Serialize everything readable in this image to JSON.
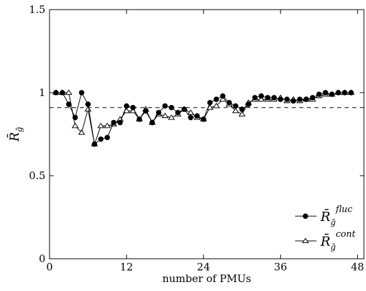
{
  "chart_data": {
    "type": "line",
    "xlabel": "number of PMUs",
    "ylabel": "R̄",
    "ylabel_sub": "ḡ",
    "xlim": [
      0,
      49
    ],
    "ylim": [
      0,
      1.5
    ],
    "xticks": [
      0,
      12,
      24,
      36,
      48
    ],
    "xtick_labels": [
      "0",
      "12",
      "24",
      "36",
      "48"
    ],
    "yticks": [
      0,
      0.5,
      1,
      1.5
    ],
    "ytick_labels": [
      "0",
      "0.5",
      "1",
      "1.5"
    ],
    "reference_line": {
      "y": 0.91,
      "style": "dashed"
    },
    "legend_position": "bottom-right",
    "x": [
      1,
      2,
      3,
      4,
      5,
      6,
      7,
      8,
      9,
      10,
      11,
      12,
      13,
      14,
      15,
      16,
      17,
      18,
      19,
      20,
      21,
      22,
      23,
      24,
      25,
      26,
      27,
      28,
      29,
      30,
      31,
      32,
      33,
      34,
      35,
      36,
      37,
      38,
      39,
      40,
      41,
      42,
      43,
      44,
      45,
      46,
      47
    ],
    "series": [
      {
        "name": "R̄",
        "label_sub": "ḡ",
        "label_sup": "fluc",
        "marker": "filled-circle",
        "values": [
          1.0,
          1.0,
          0.93,
          0.85,
          1.0,
          0.93,
          0.69,
          0.72,
          0.73,
          0.82,
          0.82,
          0.92,
          0.91,
          0.84,
          0.89,
          0.82,
          0.88,
          0.92,
          0.91,
          0.88,
          0.9,
          0.85,
          0.86,
          0.84,
          0.94,
          0.96,
          0.98,
          0.94,
          0.92,
          0.9,
          0.93,
          0.97,
          0.98,
          0.97,
          0.97,
          0.96,
          0.96,
          0.95,
          0.96,
          0.96,
          0.97,
          0.99,
          1.0,
          0.99,
          1.0,
          1.0,
          1.0
        ]
      },
      {
        "name": "R̄",
        "label_sub": "ḡ",
        "label_sup": "cont",
        "marker": "open-triangle",
        "values": [
          1.0,
          1.0,
          1.0,
          0.8,
          0.76,
          0.9,
          0.69,
          0.8,
          0.8,
          0.81,
          0.84,
          0.89,
          0.89,
          0.84,
          0.9,
          0.82,
          0.87,
          0.86,
          0.85,
          0.87,
          0.9,
          0.88,
          0.85,
          0.84,
          0.91,
          0.92,
          0.96,
          0.93,
          0.89,
          0.87,
          0.94,
          0.96,
          0.96,
          0.96,
          0.96,
          0.97,
          0.95,
          0.96,
          0.95,
          0.96,
          0.96,
          0.98,
          0.99,
          0.99,
          1.0,
          1.0,
          1.0
        ]
      }
    ]
  }
}
